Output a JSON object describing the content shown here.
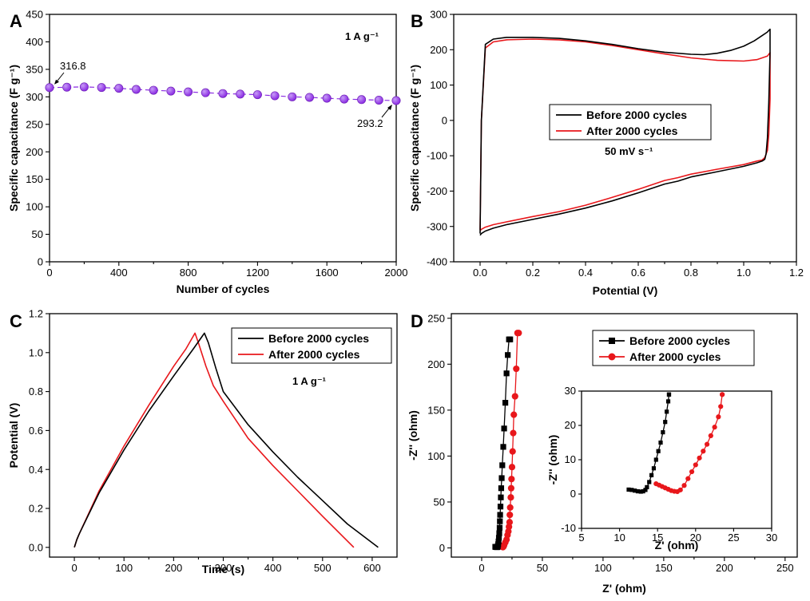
{
  "colors": {
    "black": "#000000",
    "red": "#e8171b",
    "purple": "#8a2be2",
    "purple_light": "#c79bf7"
  },
  "chart_data": [
    {
      "id": "A",
      "type": "scatter",
      "panel_label": "A",
      "xlabel": "Number of cycles",
      "ylabel": "Specific capacitance (F g⁻¹)",
      "xlim": [
        0,
        2000
      ],
      "ylim": [
        0,
        450
      ],
      "xticks": [
        0,
        400,
        800,
        1200,
        1600,
        2000
      ],
      "yticks": [
        0,
        50,
        100,
        150,
        200,
        250,
        300,
        350,
        400,
        450
      ],
      "annotation": "1 A g⁻¹",
      "series": [
        {
          "name": "capacitance",
          "x": [
            0,
            100,
            200,
            300,
            400,
            500,
            600,
            700,
            800,
            900,
            1000,
            1100,
            1200,
            1300,
            1400,
            1500,
            1600,
            1700,
            1800,
            1900,
            2000
          ],
          "y": [
            316.8,
            317.5,
            318,
            317,
            315.5,
            313.5,
            312,
            310.5,
            309,
            307.5,
            306,
            305,
            304,
            302,
            300,
            299,
            297.5,
            296,
            295,
            294,
            293.2
          ]
        }
      ],
      "labels": [
        {
          "text": "316.8",
          "x": 0,
          "y": 316.8
        },
        {
          "text": "293.2",
          "x": 2000,
          "y": 293.2
        }
      ]
    },
    {
      "id": "B",
      "type": "line",
      "panel_label": "B",
      "xlabel": "Potential (V)",
      "ylabel": "Specific capacitance (F g⁻¹)",
      "xlim": [
        -0.1,
        1.2
      ],
      "ylim": [
        -400,
        300
      ],
      "xticks": [
        0.0,
        0.2,
        0.4,
        0.6,
        0.8,
        1.0,
        1.2
      ],
      "yticks": [
        -400,
        -300,
        -200,
        -100,
        0,
        100,
        200,
        300
      ],
      "annotation": "50 mV s⁻¹",
      "series": [
        {
          "name": "Before 2000 cycles",
          "color": "#000000",
          "x": [
            0.0,
            0.005,
            0.02,
            0.05,
            0.1,
            0.2,
            0.3,
            0.4,
            0.5,
            0.6,
            0.7,
            0.8,
            0.85,
            0.9,
            0.95,
            1.0,
            1.04,
            1.07,
            1.09,
            1.1,
            1.1,
            1.095,
            1.09,
            1.085,
            1.08,
            1.07,
            1.05,
            1.0,
            0.9,
            0.8,
            0.75,
            0.7,
            0.6,
            0.5,
            0.4,
            0.3,
            0.2,
            0.1,
            0.05,
            0.02,
            0.005,
            0.0
          ],
          "y": [
            -320,
            0,
            215,
            230,
            235,
            235,
            232,
            225,
            215,
            203,
            193,
            187,
            186,
            190,
            198,
            210,
            225,
            240,
            250,
            258,
            195,
            50,
            -50,
            -95,
            -110,
            -115,
            -120,
            -130,
            -145,
            -160,
            -172,
            -180,
            -205,
            -228,
            -248,
            -265,
            -280,
            -295,
            -305,
            -313,
            -320,
            -325
          ]
        },
        {
          "name": "After 2000 cycles",
          "color": "#e8171b",
          "x": [
            0.0,
            0.005,
            0.02,
            0.05,
            0.1,
            0.2,
            0.3,
            0.4,
            0.5,
            0.6,
            0.7,
            0.8,
            0.9,
            1.0,
            1.05,
            1.09,
            1.1,
            1.1,
            1.095,
            1.09,
            1.08,
            1.07,
            1.05,
            1.0,
            0.9,
            0.8,
            0.75,
            0.7,
            0.6,
            0.5,
            0.4,
            0.3,
            0.2,
            0.1,
            0.05,
            0.02,
            0.005,
            0.0
          ],
          "y": [
            -310,
            0,
            205,
            222,
            228,
            230,
            228,
            222,
            212,
            200,
            188,
            177,
            170,
            168,
            172,
            182,
            192,
            60,
            -40,
            -85,
            -105,
            -112,
            -115,
            -125,
            -138,
            -152,
            -162,
            -170,
            -195,
            -218,
            -240,
            -258,
            -272,
            -287,
            -295,
            -302,
            -308,
            -312
          ]
        }
      ],
      "legend": [
        "Before 2000 cycles",
        "After 2000 cycles"
      ]
    },
    {
      "id": "C",
      "type": "line",
      "panel_label": "C",
      "xlabel": "Time (s)",
      "ylabel": "Potential (V)",
      "xlim": [
        -50,
        650
      ],
      "ylim": [
        -0.05,
        1.2
      ],
      "xticks": [
        0,
        100,
        200,
        300,
        400,
        500,
        600
      ],
      "yticks": [
        0.0,
        0.2,
        0.4,
        0.6,
        0.8,
        1.0,
        1.2
      ],
      "annotation": "1 A g⁻¹",
      "series": [
        {
          "name": "Before 2000 cycles",
          "color": "#000000",
          "x": [
            0,
            5,
            10,
            50,
            100,
            150,
            200,
            240,
            262,
            270,
            285,
            300,
            350,
            400,
            450,
            500,
            550,
            612
          ],
          "y": [
            0,
            0.04,
            0.07,
            0.28,
            0.5,
            0.7,
            0.88,
            1.02,
            1.1,
            1.05,
            0.92,
            0.8,
            0.63,
            0.49,
            0.36,
            0.24,
            0.12,
            0
          ]
        },
        {
          "name": "After 2000 cycles",
          "color": "#e8171b",
          "x": [
            0,
            5,
            10,
            50,
            100,
            150,
            200,
            225,
            243,
            250,
            265,
            280,
            300,
            350,
            400,
            450,
            500,
            563
          ],
          "y": [
            0,
            0.04,
            0.07,
            0.29,
            0.52,
            0.73,
            0.93,
            1.02,
            1.1,
            1.05,
            0.93,
            0.83,
            0.75,
            0.56,
            0.42,
            0.29,
            0.16,
            0
          ]
        }
      ],
      "legend": [
        "Before 2000 cycles",
        "After 2000 cycles"
      ]
    },
    {
      "id": "D",
      "type": "scatter",
      "panel_label": "D",
      "xlabel": "Z' (ohm)",
      "ylabel": "-Z'' (ohm)",
      "xlim": [
        -25,
        260
      ],
      "ylim": [
        -10,
        255
      ],
      "xticks": [
        0,
        50,
        100,
        150,
        200,
        250
      ],
      "yticks": [
        0,
        50,
        100,
        150,
        200,
        250
      ],
      "series": [
        {
          "name": "Before 2000 cycles",
          "color": "#000000",
          "marker": "square",
          "x": [
            11.2,
            11.5,
            12,
            12.5,
            13,
            13.3,
            13.6,
            13.9,
            14.2,
            14.5,
            14.8,
            15,
            15.2,
            15.5,
            15.8,
            16.1,
            16.5,
            17,
            17.8,
            18.5,
            19.5,
            20.5,
            21.5,
            22.5,
            23.5
          ],
          "y": [
            1.2,
            1.1,
            1,
            0.8,
            0.9,
            2,
            4,
            7,
            11,
            16,
            22,
            29,
            36,
            45,
            55,
            65,
            76,
            90,
            110,
            130,
            158,
            190,
            210,
            227,
            227
          ]
        },
        {
          "name": "After 2000 cycles",
          "color": "#e8171b",
          "marker": "circle",
          "x": [
            14.8,
            15.5,
            16.5,
            17.5,
            18,
            18.5,
            19.5,
            20.5,
            21.3,
            22,
            22.5,
            23,
            23.2,
            23.5,
            24,
            24.3,
            24.6,
            25,
            25.5,
            26,
            26.5,
            27.5,
            28.5,
            29.5,
            30.5
          ],
          "y": [
            3,
            2.5,
            1.5,
            0.8,
            1.5,
            3,
            6,
            9,
            14,
            18,
            23,
            28,
            36,
            44,
            55,
            65,
            75,
            88,
            105,
            125,
            145,
            165,
            195,
            234,
            234
          ]
        }
      ],
      "legend": [
        "Before 2000 cycles",
        "After 2000 cycles"
      ],
      "inset": {
        "xlim": [
          5,
          30
        ],
        "ylim": [
          -10,
          30
        ],
        "xticks": [
          5,
          10,
          15,
          20,
          25,
          30
        ],
        "yticks": [
          -10,
          0,
          10,
          20,
          30
        ],
        "xlabel": "Z' (ohm)",
        "ylabel": "-Z'' (ohm)",
        "series": [
          {
            "name": "Before 2000 cycles",
            "color": "#000000",
            "marker": "square",
            "x": [
              11.2,
              11.6,
              12,
              12.4,
              12.8,
              13.1,
              13.4,
              13.6,
              13.9,
              14.2,
              14.5,
              14.8,
              15.1,
              15.4,
              15.7,
              16,
              16.2,
              16.4,
              16.5,
              16.5
            ],
            "y": [
              1.3,
              1.2,
              1,
              0.8,
              0.7,
              0.8,
              1.2,
              2,
              3.5,
              5.5,
              7.5,
              10,
              12.5,
              15,
              18,
              21,
              24,
              27,
              29,
              29
            ]
          },
          {
            "name": "After 2000 cycles",
            "color": "#e8171b",
            "marker": "circle",
            "x": [
              14.8,
              15.2,
              15.6,
              16,
              16.4,
              16.8,
              17.2,
              17.6,
              18,
              18.5,
              19,
              19.5,
              20,
              20.5,
              21,
              21.5,
              22,
              22.5,
              23,
              23.3,
              23.5,
              23.5
            ],
            "y": [
              3,
              2.6,
              2.2,
              1.8,
              1.4,
              1,
              0.8,
              0.7,
              1.2,
              2.5,
              4.5,
              6.5,
              8.5,
              10.5,
              12.5,
              14.5,
              17,
              19.5,
              22.5,
              25.5,
              29,
              29
            ]
          }
        ]
      }
    }
  ]
}
